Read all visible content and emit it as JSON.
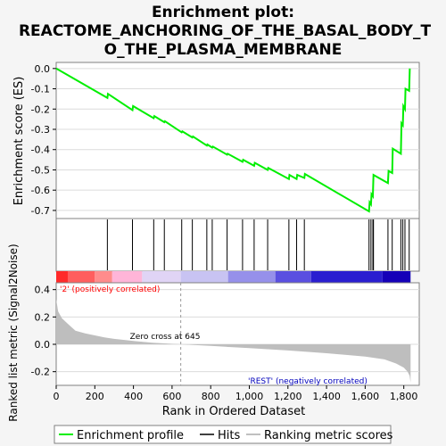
{
  "chart_data": {
    "type": "line",
    "title_line1": "Enrichment plot:",
    "title_line2": "REACTOME_ANCHORING_OF_THE_BASAL_BODY_T",
    "title_line3": "O_THE_PLASMA_MEMBRANE",
    "es_panel": {
      "ylabel": "Enrichment score (ES)",
      "ylim": [
        -0.74,
        0.03
      ],
      "yticks": [
        0.0,
        -0.1,
        -0.2,
        -0.3,
        -0.4,
        -0.5,
        -0.6,
        -0.7
      ],
      "ytick_labels": [
        "0.0",
        "-0.1",
        "-0.2",
        "-0.3",
        "-0.4",
        "-0.5",
        "-0.6",
        "-0.7"
      ],
      "series": [
        {
          "name": "Enrichment profile",
          "color": "#00ee00",
          "x": [
            0,
            265,
            268,
            395,
            398,
            505,
            508,
            560,
            563,
            650,
            653,
            705,
            708,
            780,
            783,
            808,
            811,
            885,
            888,
            965,
            968,
            1025,
            1028,
            1095,
            1098,
            1205,
            1208,
            1245,
            1248,
            1285,
            1288,
            1620,
            1623,
            1630,
            1633,
            1640,
            1643,
            1718,
            1721,
            1740,
            1743,
            1785,
            1788,
            1795,
            1798,
            1806,
            1809,
            1828,
            1831
          ],
          "y": [
            0.0,
            -0.145,
            -0.125,
            -0.205,
            -0.185,
            -0.245,
            -0.235,
            -0.265,
            -0.26,
            -0.315,
            -0.31,
            -0.34,
            -0.335,
            -0.38,
            -0.375,
            -0.39,
            -0.385,
            -0.425,
            -0.42,
            -0.46,
            -0.45,
            -0.48,
            -0.465,
            -0.5,
            -0.49,
            -0.545,
            -0.525,
            -0.545,
            -0.525,
            -0.54,
            -0.52,
            -0.705,
            -0.66,
            -0.67,
            -0.62,
            -0.63,
            -0.525,
            -0.565,
            -0.505,
            -0.515,
            -0.395,
            -0.42,
            -0.27,
            -0.28,
            -0.185,
            -0.2,
            -0.1,
            -0.11,
            0.0
          ]
        }
      ]
    },
    "hits_panel": {
      "legend_label": "Hits",
      "positions": [
        265,
        395,
        505,
        560,
        650,
        705,
        780,
        808,
        885,
        965,
        1025,
        1095,
        1205,
        1245,
        1285,
        1620,
        1630,
        1640,
        1643,
        1718,
        1740,
        1785,
        1795,
        1806,
        1828
      ]
    },
    "rank_panel": {
      "ylabel": "Ranked list metric (Signal2Noise)",
      "xlabel": "Rank in Ordered Dataset",
      "legend_label": "Ranking metric scores",
      "ylim": [
        -0.3,
        0.45
      ],
      "yticks": [
        0.4,
        0.2,
        0.0,
        -0.2
      ],
      "ytick_labels": [
        "0.4",
        "0.2",
        "0.0",
        "-0.2"
      ],
      "xlim": [
        0,
        1880
      ],
      "xticks": [
        0,
        200,
        400,
        600,
        800,
        1000,
        1200,
        1400,
        1600,
        1800
      ],
      "xtick_labels": [
        "0",
        "200",
        "400",
        "600",
        "800",
        "1,000",
        "1,200",
        "1,400",
        "1,600",
        "1,800"
      ],
      "metric_x": [
        0,
        10,
        30,
        60,
        100,
        150,
        200,
        250,
        300,
        400,
        500,
        645,
        800,
        1000,
        1200,
        1400,
        1600,
        1700,
        1760,
        1800,
        1820,
        1830,
        1835
      ],
      "metric_y": [
        0.33,
        0.24,
        0.19,
        0.15,
        0.1,
        0.08,
        0.065,
        0.05,
        0.04,
        0.025,
        0.012,
        0.0,
        -0.012,
        -0.028,
        -0.045,
        -0.065,
        -0.09,
        -0.11,
        -0.14,
        -0.17,
        -0.2,
        -0.23,
        -0.28
      ],
      "zero_cross_label": "Zero cross at 645",
      "zero_cross": 645,
      "pos_label": "'2' (positively correlated)",
      "neg_label": "'REST' (negatively correlated)",
      "pos_color": "#ff0000",
      "neg_color": "#0000bb"
    },
    "heatmap_colors": [
      "#ff2a2a",
      "#ff5e5e",
      "#ff8c8c",
      "#ffb5d8",
      "#e0d4f5",
      "#c8c3f2",
      "#9690ea",
      "#5a4fe0",
      "#2a1ed0",
      "#1500b8"
    ],
    "heatmap_breaks": [
      0,
      60,
      200,
      290,
      445,
      645,
      890,
      1135,
      1320,
      1690,
      1835
    ],
    "legend": {
      "profile_label": "Enrichment profile",
      "hits_label": "Hits",
      "metric_label": "Ranking metric scores"
    }
  }
}
